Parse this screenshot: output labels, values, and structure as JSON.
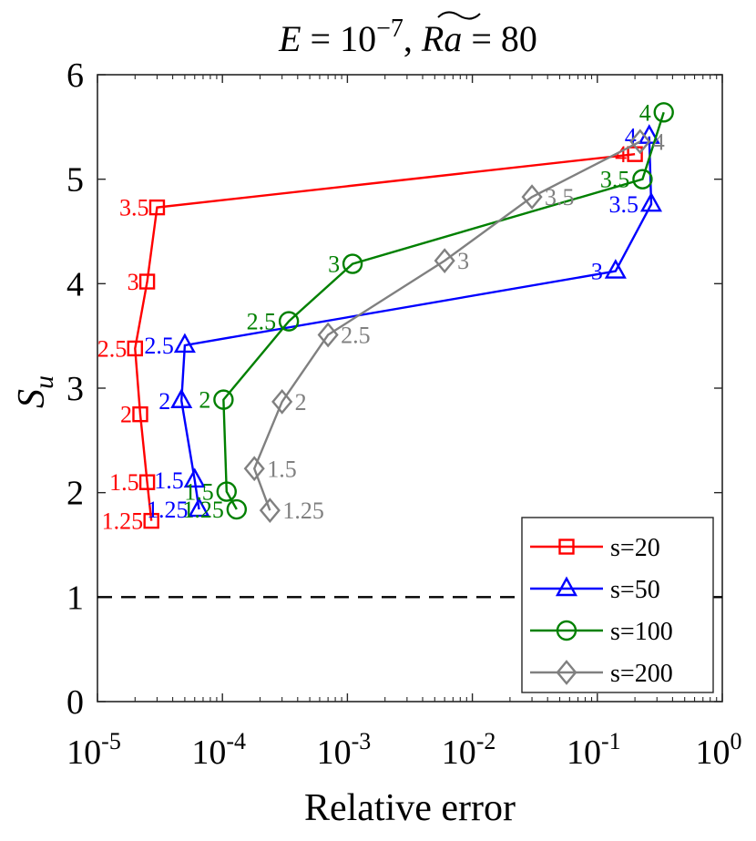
{
  "chart_data": {
    "type": "line",
    "title": "E = 10^{-7}, Ra~ = 80",
    "title_parts": {
      "left_var": "E",
      "eq1": " = 10",
      "exp": "−7",
      "comma": ",",
      "right_var": "Ra",
      "eq2": " = 80"
    },
    "xlabel": "Relative error",
    "ylabel": "S",
    "ylabel_sub": "u",
    "xscale": "log",
    "xlim": [
      1e-05,
      1
    ],
    "ylim": [
      0,
      6
    ],
    "x_ticks": [
      {
        "base": "10",
        "exp": "-5"
      },
      {
        "base": "10",
        "exp": "-4"
      },
      {
        "base": "10",
        "exp": "-3"
      },
      {
        "base": "10",
        "exp": "-2"
      },
      {
        "base": "10",
        "exp": "-1"
      },
      {
        "base": "10",
        "exp": "0"
      }
    ],
    "y_ticks": [
      "0",
      "1",
      "2",
      "3",
      "4",
      "5",
      "6"
    ],
    "reference_line": {
      "y": 1,
      "style": "dashed",
      "color": "#000000"
    },
    "legend_position": "bottom-right",
    "series": [
      {
        "name": "s=20",
        "color": "#ff0000",
        "marker": "square",
        "points": [
          {
            "x": 2.7e-05,
            "y": 1.73,
            "label": "1.25"
          },
          {
            "x": 2.5e-05,
            "y": 2.1,
            "label": "1.5"
          },
          {
            "x": 2.2e-05,
            "y": 2.75,
            "label": "2"
          },
          {
            "x": 2e-05,
            "y": 3.38,
            "label": "2.5"
          },
          {
            "x": 2.5e-05,
            "y": 4.02,
            "label": "3"
          },
          {
            "x": 3e-05,
            "y": 4.73,
            "label": "3.5"
          },
          {
            "x": 0.2,
            "y": 5.24,
            "label": "4"
          }
        ]
      },
      {
        "name": "s=50",
        "color": "#0000ff",
        "marker": "triangle",
        "points": [
          {
            "x": 6.5e-05,
            "y": 1.84,
            "label": "1.25"
          },
          {
            "x": 6e-05,
            "y": 2.12,
            "label": "1.5"
          },
          {
            "x": 4.7e-05,
            "y": 2.88,
            "label": "2"
          },
          {
            "x": 5e-05,
            "y": 3.41,
            "label": "2.5"
          },
          {
            "x": 0.14,
            "y": 4.12,
            "label": "3"
          },
          {
            "x": 0.27,
            "y": 4.76,
            "label": "3.5"
          },
          {
            "x": 0.26,
            "y": 5.41,
            "label": "4"
          }
        ]
      },
      {
        "name": "s=100",
        "color": "#008000",
        "marker": "circle",
        "points": [
          {
            "x": 0.00013,
            "y": 1.84,
            "label": "1.25"
          },
          {
            "x": 0.000108,
            "y": 2.01,
            "label": "1.5"
          },
          {
            "x": 0.000102,
            "y": 2.89,
            "label": "2"
          },
          {
            "x": 0.00034,
            "y": 3.64,
            "label": "2.5"
          },
          {
            "x": 0.0011,
            "y": 4.19,
            "label": "3"
          },
          {
            "x": 0.23,
            "y": 5.0,
            "label": "3.5"
          },
          {
            "x": 0.34,
            "y": 5.64,
            "label": "4"
          }
        ]
      },
      {
        "name": "s=200",
        "color": "#808080",
        "marker": "diamond",
        "points": [
          {
            "x": 0.00024,
            "y": 1.83,
            "label": "1.25"
          },
          {
            "x": 0.00018,
            "y": 2.23,
            "label": "1.5"
          },
          {
            "x": 0.0003,
            "y": 2.87,
            "label": "2"
          },
          {
            "x": 0.0007,
            "y": 3.51,
            "label": "2.5"
          },
          {
            "x": 0.006,
            "y": 4.22,
            "label": "3"
          },
          {
            "x": 0.03,
            "y": 4.83,
            "label": "3.5"
          },
          {
            "x": 0.22,
            "y": 5.36,
            "label": "4"
          }
        ]
      }
    ]
  }
}
